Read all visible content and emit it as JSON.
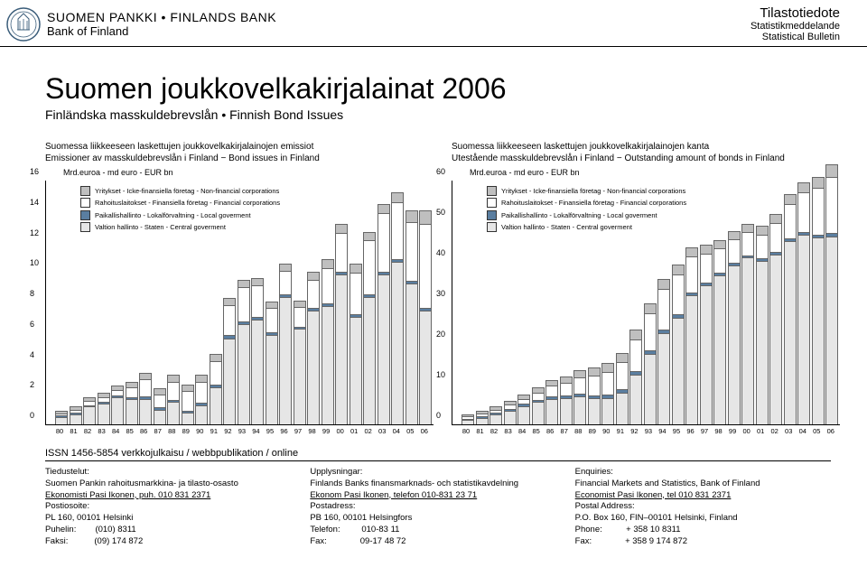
{
  "header": {
    "org_top": "SUOMEN PANKKI • FINLANDS BANK",
    "org_bottom": "Bank of Finland",
    "right_l1": "Tilastotiedote",
    "right_l2": "Statistikmeddelande",
    "right_l3": "Statistical Bulletin"
  },
  "title": "Suomen joukkovelkakirjalainat 2006",
  "subtitle": "Finländska masskuldebrevslån • Finnish Bond Issues",
  "colors": {
    "nonfin": "#bfbfbf",
    "fin": "#ffffff",
    "local": "#5a7ea0",
    "central": "#e6e6e6"
  },
  "legend": [
    {
      "key": "nonfin",
      "label": "Yritykset - Icke-finansiella företag - Non-financial corporations"
    },
    {
      "key": "fin",
      "label": "Rahoituslaitokset - Finansiella företag - Financial corporations"
    },
    {
      "key": "local",
      "label": "Paikallishallinto - Lokalförvaltning - Local goverment"
    },
    {
      "key": "central",
      "label": "Valtion hallinto - Staten - Central goverment"
    }
  ],
  "chartLeft": {
    "title_l1": "Suomessa liikkeeseen laskettujen joukkovelkakirjalainojen emissiot",
    "title_l2": "Emissioner av masskuldebrevslån i Finland − Bond issues in Finland",
    "yaxis_label": "Mrd.euroa - md euro - EUR bn",
    "ymax": 16,
    "ytick_step": 2,
    "years": [
      "80",
      "81",
      "82",
      "83",
      "84",
      "85",
      "86",
      "87",
      "88",
      "89",
      "90",
      "91",
      "92",
      "93",
      "94",
      "95",
      "96",
      "97",
      "98",
      "99",
      "00",
      "01",
      "02",
      "03",
      "04",
      "05",
      "06"
    ],
    "data": [
      {
        "central": 0.4,
        "local": 0.05,
        "fin": 0.1,
        "nonfin": 0.1
      },
      {
        "central": 0.6,
        "local": 0.05,
        "fin": 0.15,
        "nonfin": 0.15
      },
      {
        "central": 1.1,
        "local": 0.05,
        "fin": 0.2,
        "nonfin": 0.2
      },
      {
        "central": 1.3,
        "local": 0.05,
        "fin": 0.25,
        "nonfin": 0.25
      },
      {
        "central": 1.7,
        "local": 0.05,
        "fin": 0.3,
        "nonfin": 0.25
      },
      {
        "central": 1.6,
        "local": 0.05,
        "fin": 0.6,
        "nonfin": 0.3
      },
      {
        "central": 1.6,
        "local": 0.1,
        "fin": 1.1,
        "nonfin": 0.35
      },
      {
        "central": 0.9,
        "local": 0.1,
        "fin": 0.8,
        "nonfin": 0.35
      },
      {
        "central": 1.4,
        "local": 0.1,
        "fin": 1.1,
        "nonfin": 0.4
      },
      {
        "central": 0.7,
        "local": 0.1,
        "fin": 1.2,
        "nonfin": 0.4
      },
      {
        "central": 1.2,
        "local": 0.1,
        "fin": 1.3,
        "nonfin": 0.4
      },
      {
        "central": 2.4,
        "local": 0.1,
        "fin": 1.5,
        "nonfin": 0.4
      },
      {
        "central": 5.6,
        "local": 0.15,
        "fin": 1.9,
        "nonfin": 0.4
      },
      {
        "central": 6.5,
        "local": 0.15,
        "fin": 2.2,
        "nonfin": 0.4
      },
      {
        "central": 6.8,
        "local": 0.15,
        "fin": 2.0,
        "nonfin": 0.4
      },
      {
        "central": 5.8,
        "local": 0.15,
        "fin": 1.5,
        "nonfin": 0.4
      },
      {
        "central": 8.3,
        "local": 0.1,
        "fin": 1.5,
        "nonfin": 0.4
      },
      {
        "central": 6.2,
        "local": 0.1,
        "fin": 1.2,
        "nonfin": 0.4
      },
      {
        "central": 7.4,
        "local": 0.1,
        "fin": 1.8,
        "nonfin": 0.5
      },
      {
        "central": 7.7,
        "local": 0.1,
        "fin": 2.3,
        "nonfin": 0.5
      },
      {
        "central": 9.8,
        "local": 0.1,
        "fin": 2.5,
        "nonfin": 0.5
      },
      {
        "central": 7.0,
        "local": 0.1,
        "fin": 2.7,
        "nonfin": 0.5
      },
      {
        "central": 8.3,
        "local": 0.1,
        "fin": 3.5,
        "nonfin": 0.5
      },
      {
        "central": 9.8,
        "local": 0.1,
        "fin": 3.8,
        "nonfin": 0.5
      },
      {
        "central": 10.6,
        "local": 0.1,
        "fin": 3.7,
        "nonfin": 0.6
      },
      {
        "central": 9.2,
        "local": 0.1,
        "fin": 3.8,
        "nonfin": 0.7
      },
      {
        "central": 7.4,
        "local": 0.1,
        "fin": 5.5,
        "nonfin": 0.8
      }
    ]
  },
  "chartRight": {
    "title_l1": "Suomessa liikkeeseen laskettujen joukkovelkakirjalainojen kanta",
    "title_l2": "Utestående masskuldebrevslån i Finland − Outstanding amount of bonds in Finland",
    "yaxis_label": "Mrd.euroa - md euro - EUR bn",
    "ymax": 60,
    "ytick_step": 10,
    "years": [
      "80",
      "81",
      "82",
      "83",
      "84",
      "85",
      "86",
      "87",
      "88",
      "89",
      "90",
      "91",
      "92",
      "93",
      "94",
      "95",
      "96",
      "97",
      "98",
      "99",
      "00",
      "01",
      "02",
      "03",
      "04",
      "05",
      "06"
    ],
    "data": [
      {
        "central": 0.9,
        "local": 0.1,
        "fin": 0.3,
        "nonfin": 0.3
      },
      {
        "central": 1.4,
        "local": 0.15,
        "fin": 0.4,
        "nonfin": 0.4
      },
      {
        "central": 2.2,
        "local": 0.2,
        "fin": 0.6,
        "nonfin": 0.5
      },
      {
        "central": 3.1,
        "local": 0.25,
        "fin": 0.8,
        "nonfin": 0.7
      },
      {
        "central": 4.3,
        "local": 0.3,
        "fin": 1.0,
        "nonfin": 0.8
      },
      {
        "central": 5.3,
        "local": 0.35,
        "fin": 1.5,
        "nonfin": 1.0
      },
      {
        "central": 6.1,
        "local": 0.4,
        "fin": 2.3,
        "nonfin": 1.2
      },
      {
        "central": 6.2,
        "local": 0.45,
        "fin": 2.9,
        "nonfin": 1.4
      },
      {
        "central": 6.6,
        "local": 0.5,
        "fin": 3.7,
        "nonfin": 1.6
      },
      {
        "central": 6.2,
        "local": 0.55,
        "fin": 4.5,
        "nonfin": 1.8
      },
      {
        "central": 6.3,
        "local": 0.6,
        "fin": 5.4,
        "nonfin": 2.0
      },
      {
        "central": 7.6,
        "local": 0.6,
        "fin": 6.4,
        "nonfin": 2.1
      },
      {
        "central": 11.9,
        "local": 0.7,
        "fin": 7.7,
        "nonfin": 2.2
      },
      {
        "central": 17.1,
        "local": 0.7,
        "fin": 8.9,
        "nonfin": 2.3
      },
      {
        "central": 22.2,
        "local": 0.7,
        "fin": 9.8,
        "nonfin": 2.3
      },
      {
        "central": 26.0,
        "local": 0.6,
        "fin": 9.6,
        "nonfin": 2.2
      },
      {
        "central": 31.5,
        "local": 0.6,
        "fin": 8.5,
        "nonfin": 2.1
      },
      {
        "central": 34.0,
        "local": 0.5,
        "fin": 6.8,
        "nonfin": 2.0
      },
      {
        "central": 36.5,
        "local": 0.5,
        "fin": 5.6,
        "nonfin": 1.9
      },
      {
        "central": 38.9,
        "local": 0.4,
        "fin": 5.5,
        "nonfin": 1.9
      },
      {
        "central": 40.8,
        "local": 0.4,
        "fin": 5.4,
        "nonfin": 1.9
      },
      {
        "central": 40.0,
        "local": 0.4,
        "fin": 5.7,
        "nonfin": 1.9
      },
      {
        "central": 41.6,
        "local": 0.4,
        "fin": 6.9,
        "nonfin": 2.0
      },
      {
        "central": 44.9,
        "local": 0.4,
        "fin": 8.3,
        "nonfin": 2.1
      },
      {
        "central": 46.4,
        "local": 0.4,
        "fin": 9.6,
        "nonfin": 2.3
      },
      {
        "central": 45.8,
        "local": 0.5,
        "fin": 11.2,
        "nonfin": 2.6
      },
      {
        "central": 46.1,
        "local": 0.5,
        "fin": 13.6,
        "nonfin": 2.9
      }
    ]
  },
  "issn": "ISSN 1456-5854 verkkojulkaisu / webbpublikation / online",
  "footer": {
    "col1": {
      "l1": "Tiedustelut:",
      "l2": "Suomen Pankin rahoitusmarkkina- ja tilasto-osasto",
      "l3": "Ekonomisti Pasi Ikonen, puh. 010 831 2371",
      "l4": "Postiosoite:",
      "l5": "PL 160, 00101 Helsinki",
      "l6": "Puhelin:        (010) 8311",
      "l7": "Faksi:           (09) 174 872"
    },
    "col2": {
      "l1": "Upplysningar:",
      "l2": "Finlands Banks finansmarknads- och statistikavdelning",
      "l3": "Ekonom Pasi Ikonen, telefon 010-831 23 71",
      "l4": "Postadress:",
      "l5": "PB 160, 00101 Helsingfors",
      "l6": "Telefon:         010-83 11",
      "l7": "Fax:              09-17 48 72"
    },
    "col3": {
      "l1": "Enquiries:",
      "l2": "Financial Markets and Statistics, Bank of Finland",
      "l3": "Economist Pasi Ikonen, tel 010 831 2371",
      "l4": "Postal Address:",
      "l5": "P.O. Box 160, FIN–00101 Helsinki, Finland",
      "l6": "Phone:          + 358 10 8311",
      "l7": "Fax:              + 358 9 174 872"
    }
  }
}
